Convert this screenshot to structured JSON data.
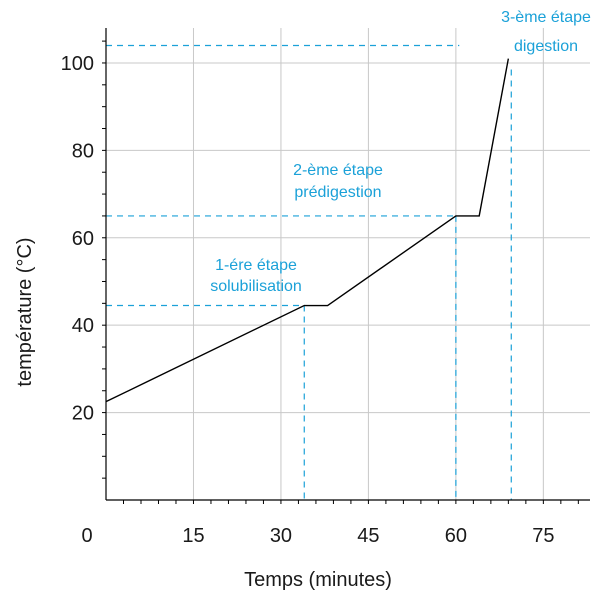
{
  "chart_data": {
    "type": "line",
    "title": "",
    "xlabel": "Temps (minutes)",
    "ylabel": "température (°C)",
    "xlim": [
      0,
      83
    ],
    "ylim": [
      0,
      108
    ],
    "x_ticks": [
      0,
      15,
      30,
      45,
      60,
      75
    ],
    "y_ticks": [
      20,
      40,
      60,
      80,
      100
    ],
    "grid": true,
    "series": [
      {
        "points": [
          {
            "x": 0,
            "y": 22.5
          },
          {
            "x": 34,
            "y": 44.5
          },
          {
            "x": 38,
            "y": 44.5
          },
          {
            "x": 60,
            "y": 65
          },
          {
            "x": 64,
            "y": 65
          },
          {
            "x": 69,
            "y": 101
          }
        ]
      }
    ],
    "stages": [
      {
        "line1": "1-ére étape",
        "line2": "solubilisation",
        "x": 34,
        "y": 44.5
      },
      {
        "line1": "2-ème étape",
        "line2": "prédigestion",
        "x": 60,
        "y": 65
      },
      {
        "line1": "3-ème étape",
        "line2": "digestion",
        "x": 69.5,
        "y": 104
      }
    ],
    "colors": {
      "line": "#000000",
      "annotation": "#1ba1d8",
      "grid": "#c8c8c8",
      "axis": "#000000"
    }
  }
}
